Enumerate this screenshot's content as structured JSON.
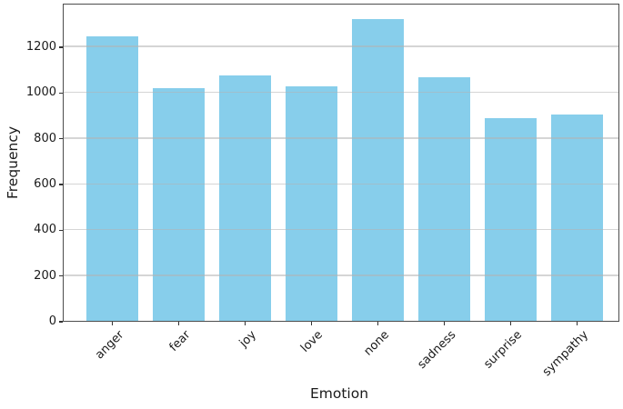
{
  "chart_data": {
    "type": "bar",
    "title": "",
    "xlabel": "Emotion",
    "ylabel": "Frequency",
    "categories": [
      "anger",
      "fear",
      "joy",
      "love",
      "none",
      "sadness",
      "surprise",
      "sympathy"
    ],
    "values": [
      1248,
      1020,
      1075,
      1030,
      1322,
      1070,
      890,
      907
    ],
    "ylim": [
      0,
      1390
    ],
    "yticks": [
      0,
      200,
      400,
      600,
      800,
      1000,
      1200
    ],
    "xtick_rotation_deg": 45,
    "grid": "horizontal-only",
    "legend": "none",
    "colors": {
      "bar_fill": "#87CEEB",
      "gridline": "rgba(178,178,178,0.55)",
      "spine": "#4d4d4d",
      "tick_mark": "#333333",
      "text": "#1a1a1a",
      "background": "#ffffff"
    }
  }
}
